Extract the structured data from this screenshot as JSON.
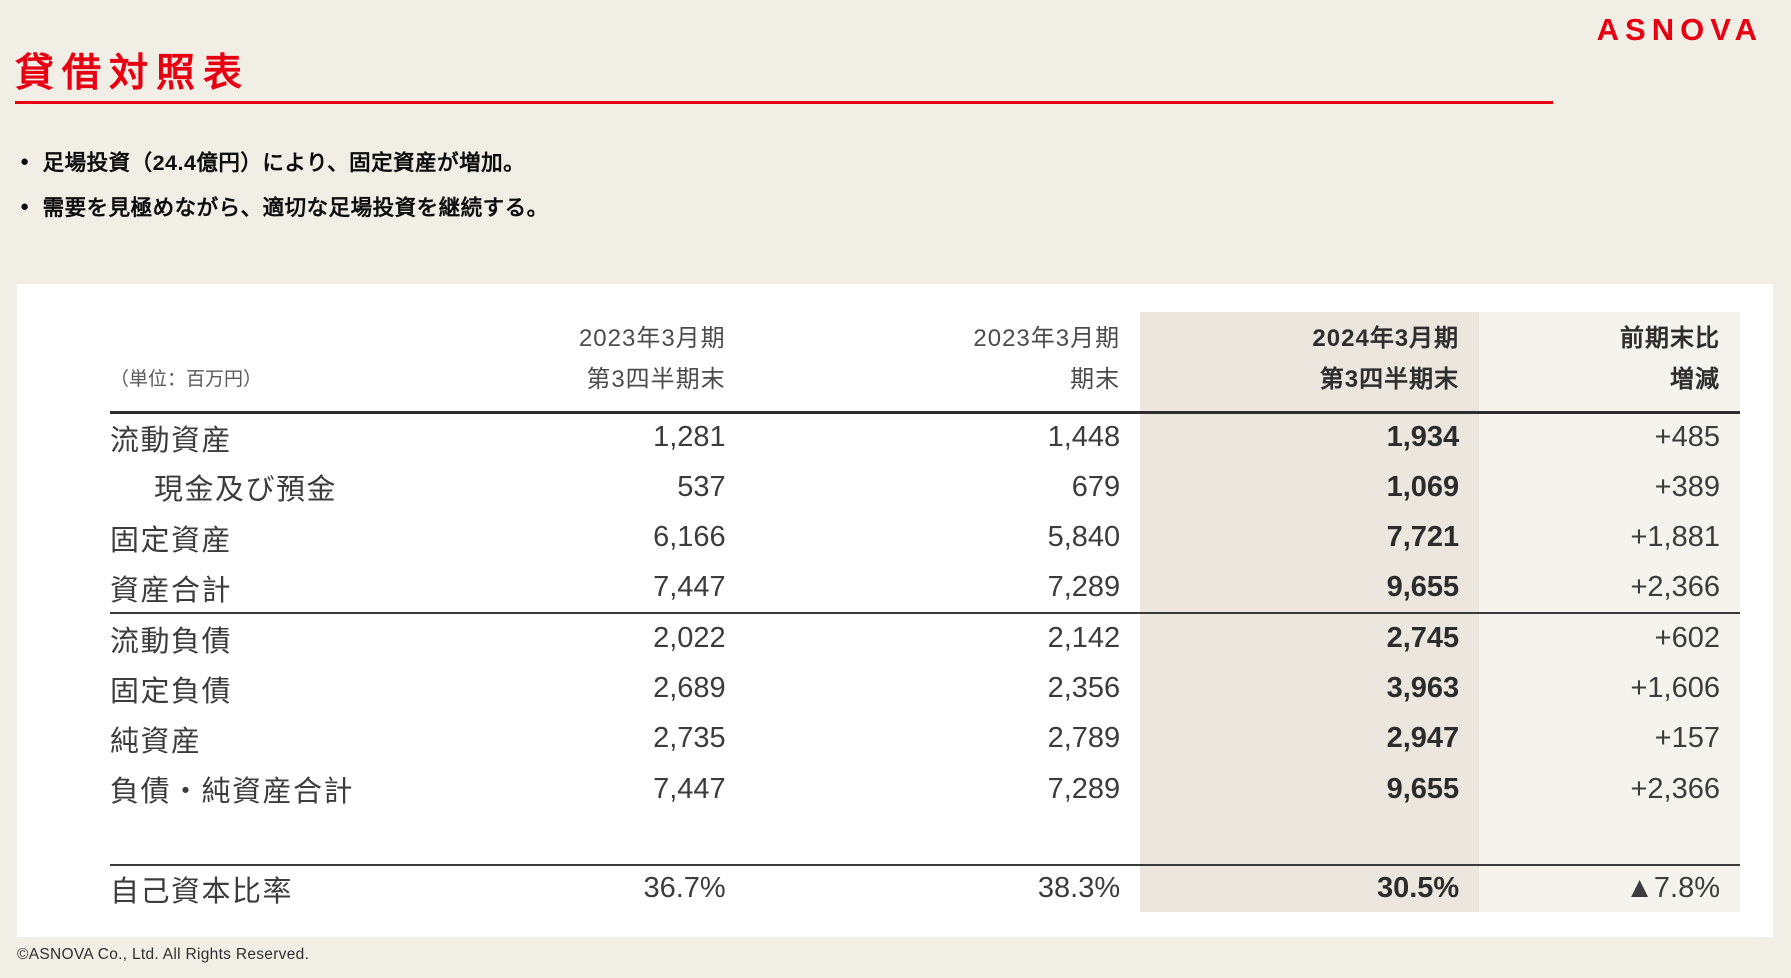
{
  "header": {
    "logo": "ASNOVA",
    "title": "貸借対照表"
  },
  "bullets": {
    "marker": "●",
    "items": [
      "足場投資（24.4億円）により、固定資産が増加。",
      "需要を見極めながら、適切な足場投資を継続する。"
    ]
  },
  "table": {
    "unit_label": "（単位：百万円）",
    "columns": [
      {
        "line1": "2023年3月期",
        "line2": "第3四半期末"
      },
      {
        "line1": "2023年3月期",
        "line2": "期末"
      },
      {
        "line1": "2024年3月期",
        "line2": "第3四半期末"
      },
      {
        "line1": "前期末比",
        "line2": "増減"
      }
    ],
    "rows": [
      {
        "label": "流動資産",
        "values": [
          "1,281",
          "1,448",
          "1,934",
          "+485"
        ]
      },
      {
        "label": "現金及び預金",
        "values": [
          "537",
          "679",
          "1,069",
          "+389"
        ]
      },
      {
        "label": "固定資産",
        "values": [
          "6,166",
          "5,840",
          "7,721",
          "+1,881"
        ]
      },
      {
        "label": "資産合計",
        "values": [
          "7,447",
          "7,289",
          "9,655",
          "+2,366"
        ]
      },
      {
        "label": "流動負債",
        "values": [
          "2,022",
          "2,142",
          "2,745",
          "+602"
        ]
      },
      {
        "label": "固定負債",
        "values": [
          "2,689",
          "2,356",
          "3,963",
          "+1,606"
        ]
      },
      {
        "label": "純資産",
        "values": [
          "2,735",
          "2,789",
          "2,947",
          "+157"
        ]
      },
      {
        "label": "負債・純資産合計",
        "values": [
          "7,447",
          "7,289",
          "9,655",
          "+2,366"
        ]
      }
    ],
    "ratio_row": {
      "label": "自己資本比率",
      "values": [
        "36.7%",
        "38.3%",
        "30.5%",
        "▲7.8%"
      ]
    }
  },
  "footer": {
    "copyright": "©ASNOVA Co., Ltd. All Rights Reserved."
  },
  "colors": {
    "brand_red": "#e60012",
    "page_bg": "#f1eee6",
    "card_bg": "#ffffff",
    "highlight_column_bg": "#ebe7de",
    "diff_column_bg": "#f5f3ed"
  }
}
